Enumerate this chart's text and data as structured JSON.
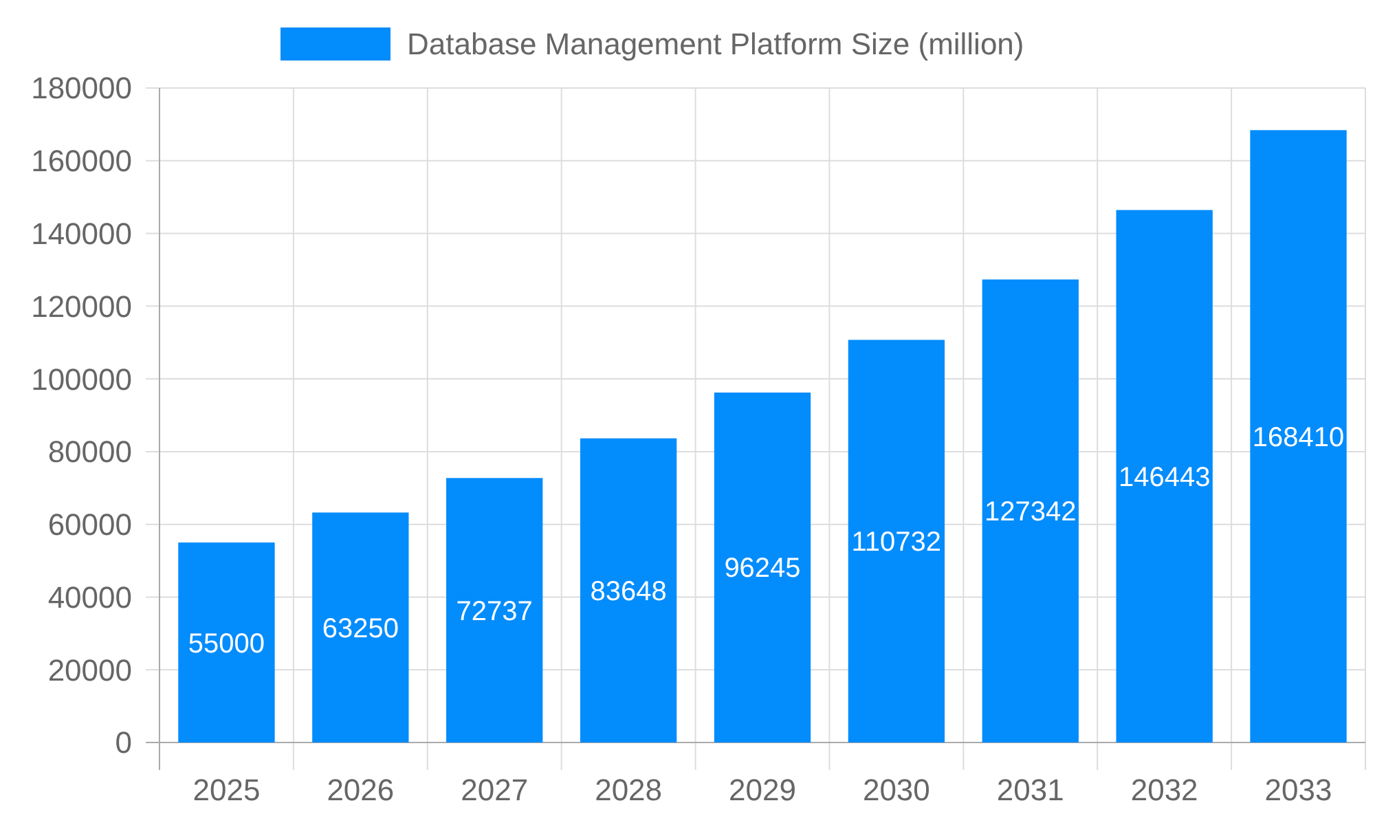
{
  "chart_data": {
    "type": "bar",
    "categories": [
      "2025",
      "2026",
      "2027",
      "2028",
      "2029",
      "2030",
      "2031",
      "2032",
      "2033"
    ],
    "series": [
      {
        "name": "Database Management Platform Size (million)",
        "color": "#038cfc",
        "values": [
          55000,
          63250,
          72737,
          83648,
          96245,
          110732,
          127342,
          146443,
          168410
        ]
      }
    ],
    "ylim": [
      0,
      180000
    ],
    "yticks": [
      0,
      20000,
      40000,
      60000,
      80000,
      100000,
      120000,
      140000,
      160000,
      180000
    ],
    "grid": true,
    "legend": "top",
    "data_labels": true
  }
}
